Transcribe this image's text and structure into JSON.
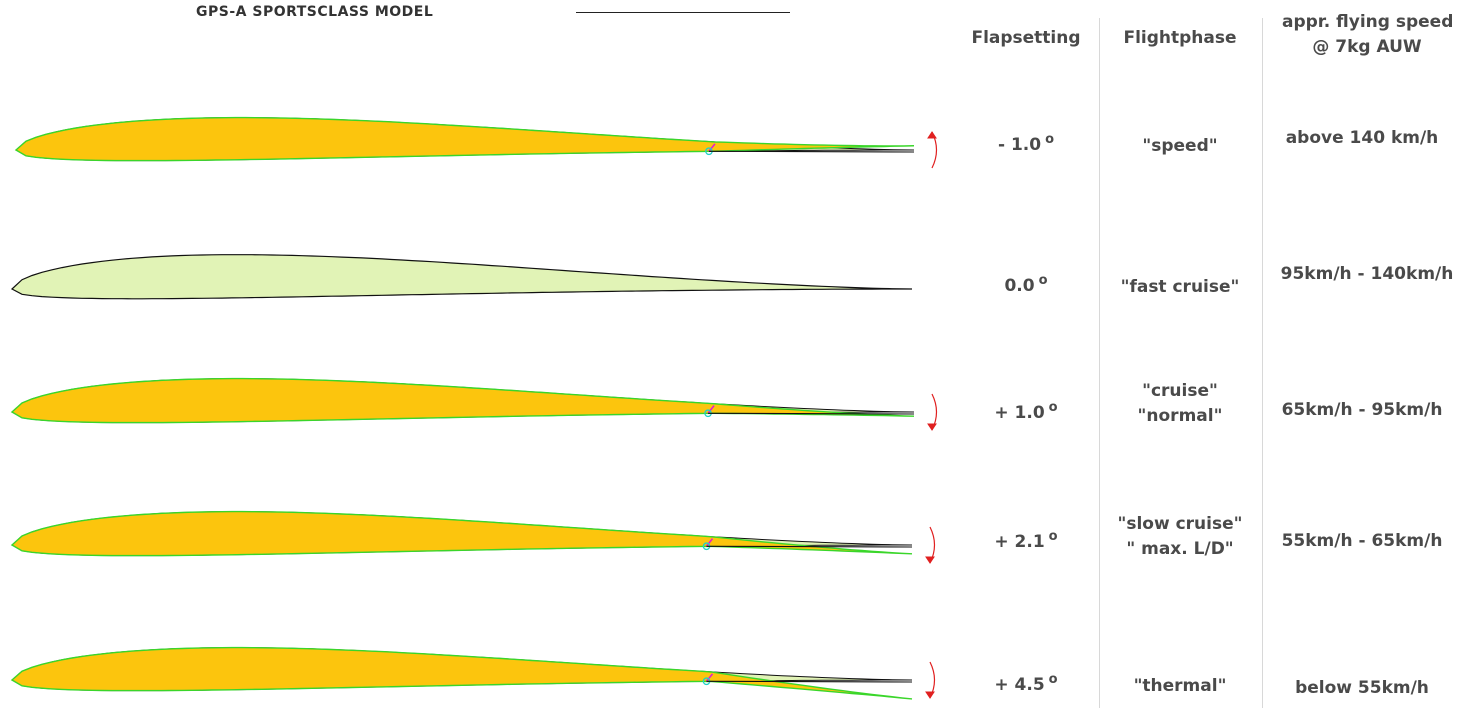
{
  "header": {
    "subtitle": "GPS-A SPORTSCLASS MODEL"
  },
  "columns": {
    "flapsetting": "Flapsetting",
    "flightphase": "Flightphase",
    "speed_line1": "appr. flying speed",
    "speed_line2": "@ 7kg AUW"
  },
  "degree_symbol": "o",
  "colors": {
    "airfoil_fill": "#fcc50d",
    "neutral_fill": "#e1f3b6",
    "outline_green": "#3ad62a",
    "hinge_magenta": "#e020d0",
    "hinge_cyan": "#20d0c8",
    "arrow_red": "#e02020",
    "text": "#4a4a4a"
  },
  "rows": [
    {
      "flap": "- 1.0",
      "phase": [
        "\"speed\""
      ],
      "speed": "above 140 km/h",
      "deflection_deg": -1.0,
      "arrow": "up"
    },
    {
      "flap": "0.0",
      "phase": [
        "\"fast cruise\""
      ],
      "speed": "95km/h - 140km/h",
      "deflection_deg": 0.0,
      "arrow": "none"
    },
    {
      "flap": "+ 1.0",
      "phase": [
        "\"cruise\"",
        "\"normal\""
      ],
      "speed": "65km/h - 95km/h",
      "deflection_deg": 1.0,
      "arrow": "down"
    },
    {
      "flap": "+ 2.1",
      "phase": [
        "\"slow cruise\"",
        "\" max. L/D\""
      ],
      "speed": "55km/h - 65km/h",
      "deflection_deg": 2.1,
      "arrow": "down"
    },
    {
      "flap": "+ 4.5",
      "phase": [
        "\"thermal\""
      ],
      "speed": "below 55km/h",
      "deflection_deg": 4.5,
      "arrow": "down"
    }
  ]
}
